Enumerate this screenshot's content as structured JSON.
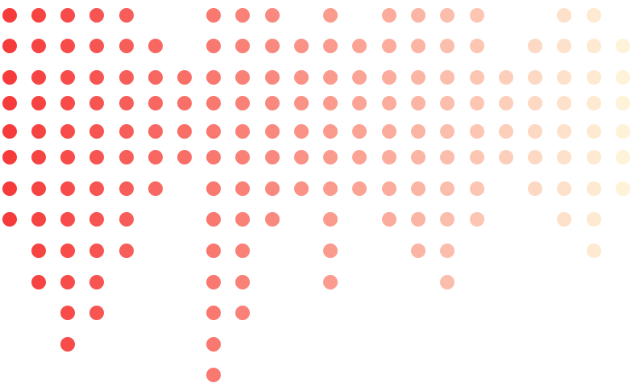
{
  "pattern": {
    "gradient": {
      "start_color": "#f63b3b",
      "end_color": "#fef2d9"
    },
    "columns": [
      {
        "rows": [
          0,
          1,
          2,
          3,
          4,
          5,
          6,
          7
        ]
      },
      {
        "rows": [
          0,
          1,
          2,
          3,
          4,
          5,
          6,
          7,
          8,
          9
        ]
      },
      {
        "rows": [
          0,
          1,
          2,
          3,
          4,
          5,
          6,
          7,
          8,
          9,
          10,
          11
        ]
      },
      {
        "rows": [
          0,
          1,
          2,
          3,
          4,
          5,
          6,
          7,
          8,
          9,
          10
        ]
      },
      {
        "rows": [
          0,
          1,
          2,
          3,
          4,
          5,
          6,
          7,
          8
        ]
      },
      {
        "rows": [
          1,
          2,
          3,
          4,
          5,
          6
        ]
      },
      {
        "rows": [
          2,
          3,
          4,
          5
        ]
      },
      {
        "rows": [
          0,
          1,
          2,
          3,
          4,
          5,
          6,
          7,
          8,
          9,
          10,
          11,
          12
        ]
      },
      {
        "rows": [
          0,
          1,
          2,
          3,
          4,
          5,
          6,
          7,
          8,
          9,
          10
        ]
      },
      {
        "rows": [
          0,
          1,
          2,
          3,
          4,
          5,
          6,
          7
        ]
      },
      {
        "rows": [
          1,
          2,
          3,
          4,
          5,
          6
        ]
      },
      {
        "rows": [
          0,
          1,
          2,
          3,
          4,
          5,
          6,
          7,
          8,
          9
        ]
      },
      {
        "rows": [
          1,
          2,
          3,
          4,
          5,
          6
        ]
      },
      {
        "rows": [
          0,
          1,
          2,
          3,
          4,
          5,
          6,
          7
        ]
      },
      {
        "rows": [
          0,
          1,
          2,
          3,
          4,
          5,
          6,
          7,
          8
        ]
      },
      {
        "rows": [
          0,
          1,
          2,
          3,
          4,
          5,
          6,
          7,
          8,
          9
        ]
      },
      {
        "rows": [
          0,
          1,
          2,
          3,
          4,
          5,
          6,
          7
        ]
      },
      {
        "rows": [
          2,
          3,
          4,
          5
        ]
      },
      {
        "rows": [
          1,
          2,
          3,
          4,
          5,
          6
        ]
      },
      {
        "rows": [
          0,
          1,
          2,
          3,
          4,
          5,
          6,
          7
        ]
      },
      {
        "rows": [
          0,
          1,
          2,
          3,
          4,
          5,
          6,
          7,
          8
        ]
      },
      {
        "rows": [
          1,
          2,
          3,
          4,
          5,
          6
        ]
      }
    ]
  }
}
